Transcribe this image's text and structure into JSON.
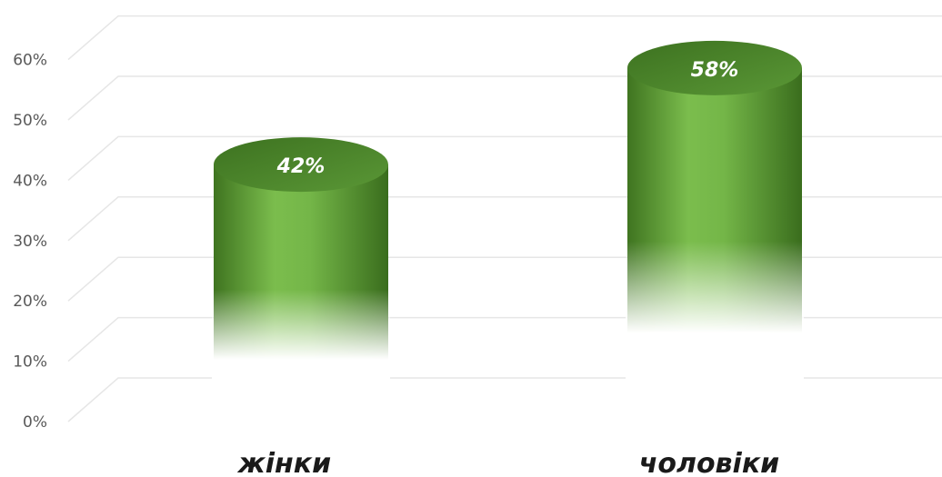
{
  "chart_data": {
    "type": "bar",
    "categories": [
      "жінки",
      "чоловіки"
    ],
    "values": [
      42,
      58
    ],
    "data_labels": [
      "42%",
      "58%"
    ],
    "ylim": [
      0,
      60
    ],
    "yticks": [
      "0%",
      "10%",
      "20%",
      "30%",
      "40%",
      "50%",
      "60%"
    ],
    "grid": true,
    "legend": "none",
    "bar_style": "3d-cylinder",
    "colors": {
      "bar": "#6aa843",
      "bar_dark": "#3f7420",
      "top": "#4c8a2e",
      "grid": "#e6e6e6",
      "tick_text": "#595959"
    }
  }
}
